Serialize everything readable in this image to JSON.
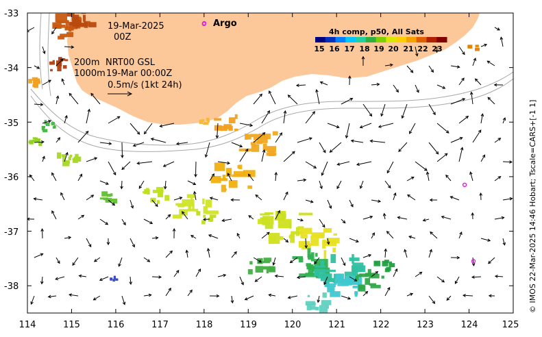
{
  "map": {
    "lon_ticks": [
      "114",
      "115",
      "116",
      "117",
      "118",
      "119",
      "120",
      "121",
      "122",
      "123",
      "124",
      "125"
    ],
    "lat_ticks": [
      "-33",
      "-34",
      "-35",
      "-36",
      "-37",
      "-38"
    ],
    "lon_range": [
      114,
      125
    ],
    "lat_range": [
      -33,
      -38.5
    ]
  },
  "annotations": {
    "date": "19-Mar-2025",
    "time": "00Z",
    "depth_200": "200m",
    "depth_1000": "1000m",
    "product": "NRT00 GSL",
    "product_time": "19-Mar 00:00Z",
    "scale_label": "0.5m/s (1kt 24h)",
    "argo_label": "Argo"
  },
  "colorbar": {
    "title": "4h comp, p50, All Sats",
    "ticks": [
      "15",
      "16",
      "17",
      "18",
      "19",
      "20",
      "21",
      "22",
      "23"
    ],
    "colors": [
      "#000080",
      "#0030c0",
      "#0080ff",
      "#00c8ff",
      "#20d0a0",
      "#30b040",
      "#80d000",
      "#d8e800",
      "#ffd000",
      "#f8a000",
      "#e06000",
      "#b02000",
      "#800000"
    ]
  },
  "side_text": "© IMOS 22-Mar-2025 14:46 Hobart; Tscale=CARS+[-1 1]",
  "colors": {
    "land": "#fcc89a",
    "argo": "#e020e0",
    "isobath": "#a8a8a8"
  },
  "argo_floats": [
    {
      "lon": 118.0,
      "lat": -33.2
    },
    {
      "lon": 123.9,
      "lat": -36.15
    },
    {
      "lon": 124.1,
      "lat": -37.55
    }
  ]
}
